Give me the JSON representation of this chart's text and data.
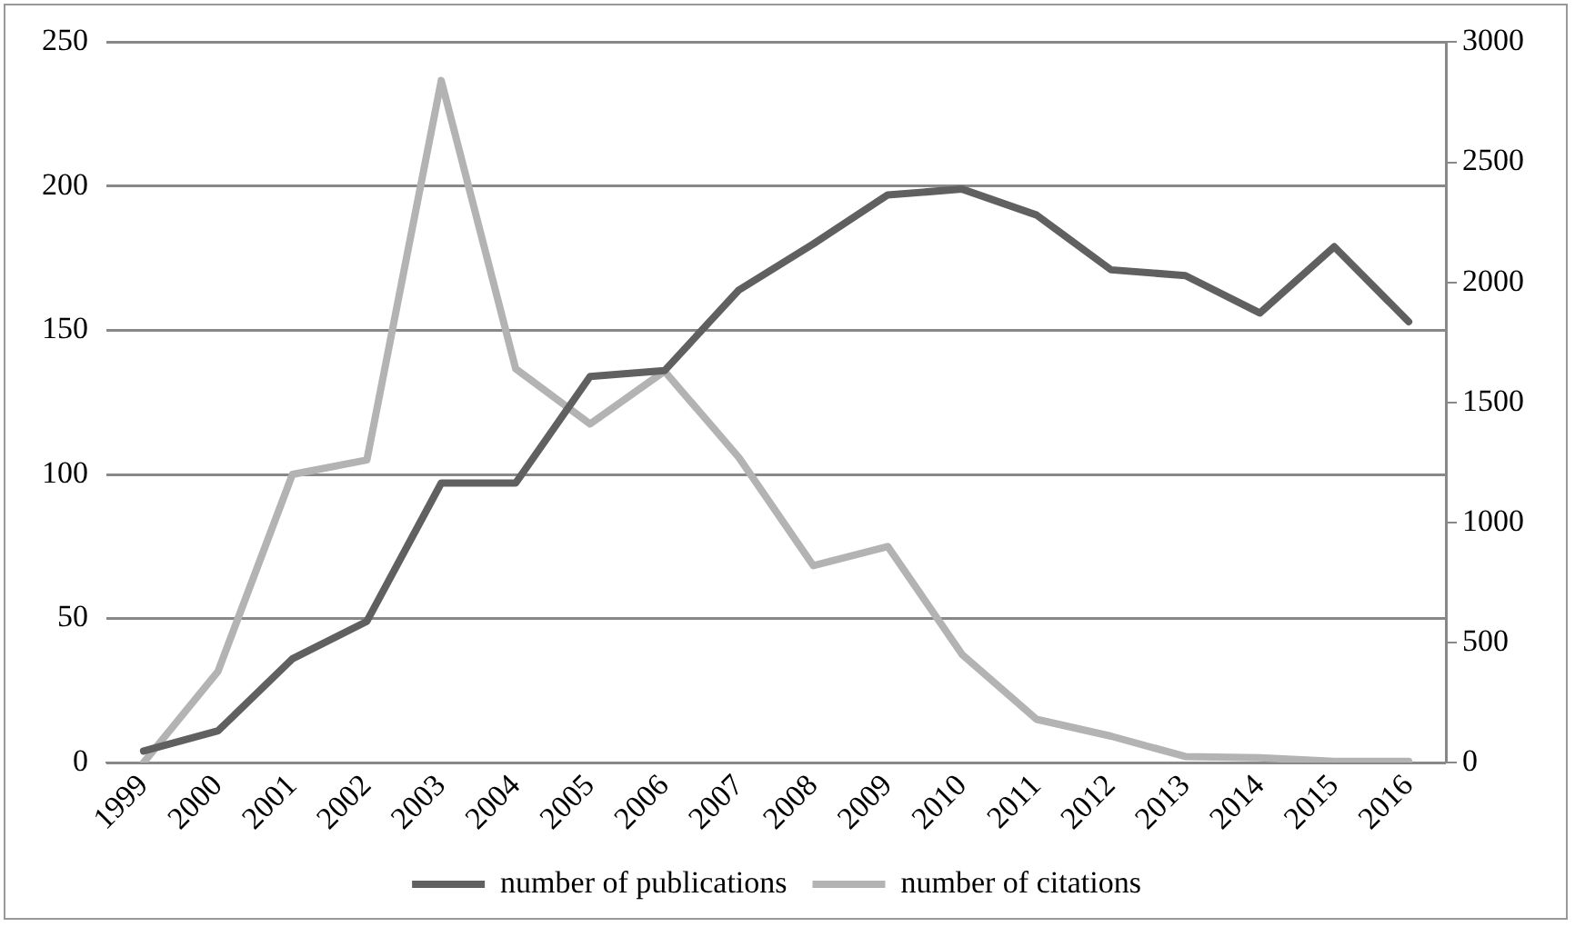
{
  "chart_data": {
    "type": "line",
    "categories": [
      "1999",
      "2000",
      "2001",
      "2002",
      "2003",
      "2004",
      "2005",
      "2006",
      "2007",
      "2008",
      "2009",
      "2010",
      "2011",
      "2012",
      "2013",
      "2014",
      "2015",
      "2016"
    ],
    "series": [
      {
        "name": "number of publications",
        "color": "#606060",
        "values": [
          4,
          11,
          36,
          49,
          97,
          97,
          134,
          136,
          164,
          180,
          197,
          199,
          190,
          171,
          169,
          156,
          179,
          153
        ]
      },
      {
        "name": "number of citations",
        "color": "#b3b3b3",
        "axis": "y2",
        "values": [
          0,
          380,
          1200,
          1260,
          2840,
          1640,
          1410,
          1630,
          1270,
          820,
          900,
          450,
          180,
          110,
          25,
          20,
          5,
          5
        ]
      }
    ],
    "ylim": [
      0,
      250
    ],
    "yticks": [
      0,
      50,
      100,
      150,
      200,
      250
    ],
    "y2lim": [
      0,
      3000
    ],
    "y2ticks": [
      0,
      500,
      1000,
      1500,
      2000,
      2500,
      3000
    ],
    "grid": "y",
    "legend": "bottom",
    "marker": "none",
    "line_style": "solid"
  }
}
